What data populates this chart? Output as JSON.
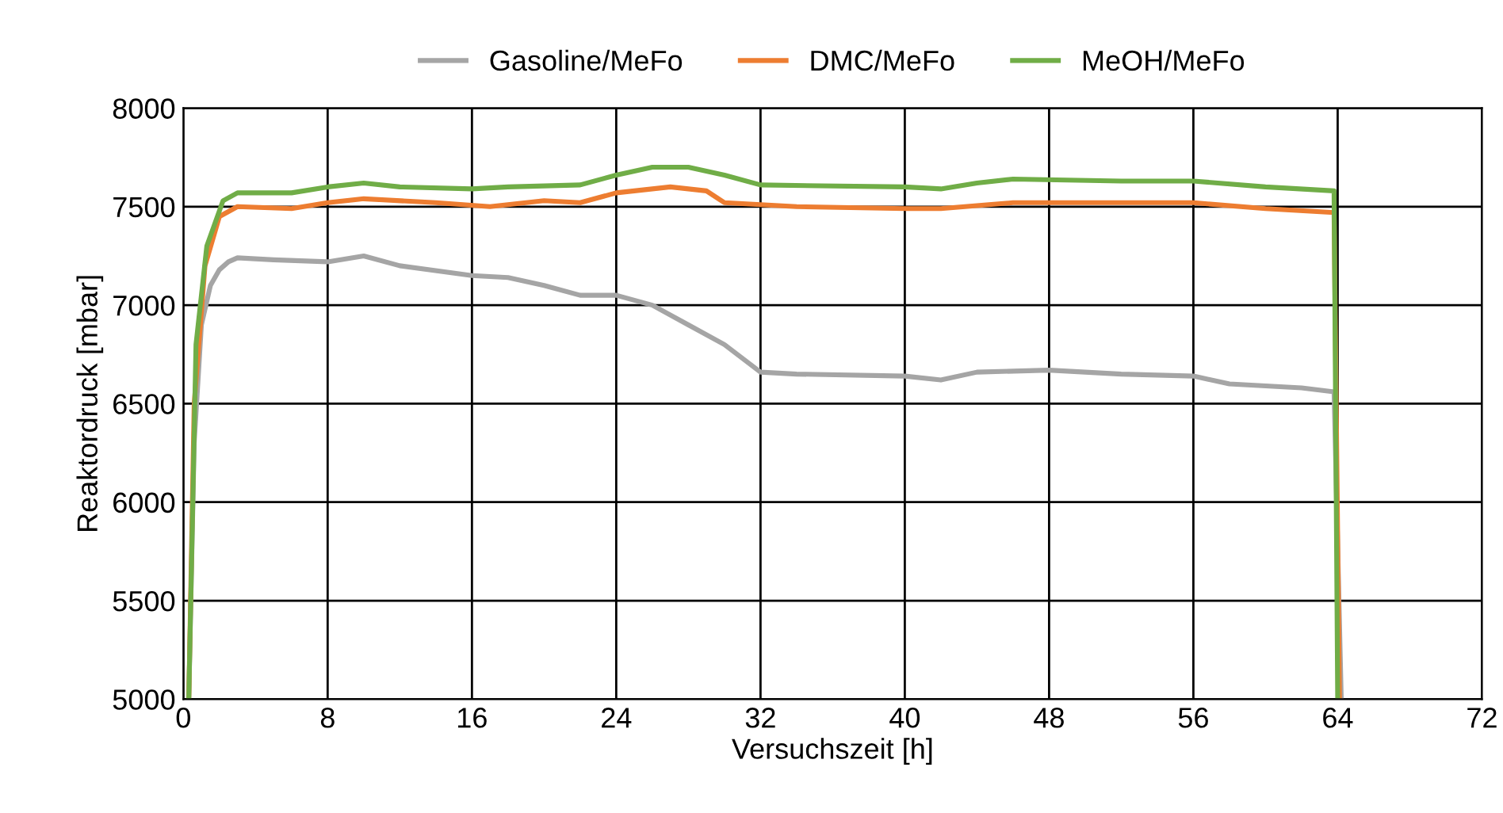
{
  "chart_data": {
    "type": "line",
    "xlabel": "Versuchszeit [h]",
    "ylabel": "Reaktordruck [mbar]",
    "xlim": [
      0,
      72
    ],
    "ylim": [
      5000,
      8000
    ],
    "xticks": [
      0,
      8,
      16,
      24,
      32,
      40,
      48,
      56,
      64,
      72
    ],
    "yticks": [
      5000,
      5500,
      6000,
      6500,
      7000,
      7500,
      8000
    ],
    "grid": true,
    "legend": "top",
    "marker": "none",
    "line_style": "solid",
    "series": [
      {
        "name": "Gasoline/MeFo",
        "color": "#a5a5a5",
        "x": [
          0.3,
          0.6,
          1.0,
          1.5,
          2.0,
          2.5,
          3,
          5,
          8,
          10,
          12,
          16,
          18,
          20,
          22,
          24,
          26,
          28,
          30,
          32,
          34,
          40,
          42,
          44,
          48,
          52,
          56,
          58,
          62,
          63.8,
          64.2
        ],
        "values": [
          5000,
          6300,
          6900,
          7100,
          7180,
          7220,
          7240,
          7230,
          7220,
          7250,
          7200,
          7150,
          7140,
          7100,
          7050,
          7050,
          7000,
          6900,
          6800,
          6660,
          6650,
          6640,
          6620,
          6660,
          6670,
          6650,
          6640,
          6600,
          6580,
          6560,
          5000
        ]
      },
      {
        "name": "DMC/MeFo",
        "color": "#ed7d31",
        "x": [
          0.3,
          0.6,
          1.2,
          2,
          3,
          6,
          8,
          10,
          14,
          17,
          20,
          22,
          24,
          27,
          29,
          30,
          34,
          40,
          42,
          46,
          52,
          56,
          60,
          63.8,
          64.1
        ],
        "values": [
          5000,
          6500,
          7200,
          7450,
          7500,
          7490,
          7520,
          7540,
          7520,
          7500,
          7530,
          7520,
          7570,
          7600,
          7580,
          7520,
          7500,
          7490,
          7490,
          7520,
          7520,
          7520,
          7490,
          7470,
          5000
        ]
      },
      {
        "name": "MeOH/MeFo",
        "color": "#70ad47",
        "x": [
          0.3,
          0.7,
          1.3,
          2.2,
          3,
          6,
          8,
          10,
          12,
          16,
          18,
          22,
          24,
          26,
          28,
          30,
          32,
          40,
          42,
          44,
          46,
          52,
          56,
          60,
          63.8,
          64.0
        ],
        "values": [
          5000,
          6800,
          7300,
          7530,
          7570,
          7570,
          7600,
          7620,
          7600,
          7590,
          7600,
          7610,
          7660,
          7700,
          7700,
          7660,
          7610,
          7600,
          7590,
          7620,
          7640,
          7630,
          7630,
          7600,
          7580,
          5000
        ]
      }
    ]
  }
}
